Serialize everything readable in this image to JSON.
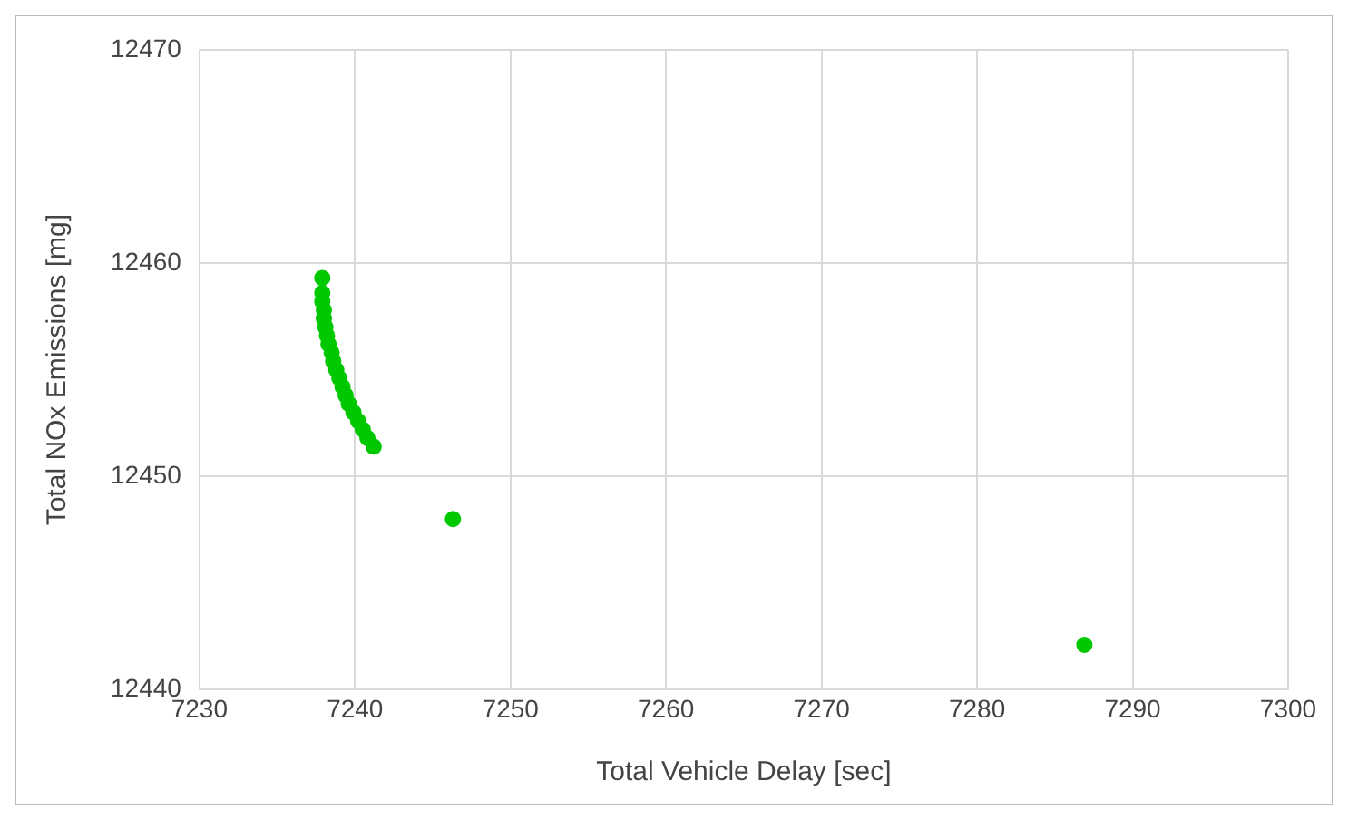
{
  "chart_data": {
    "type": "scatter",
    "xlabel": "Total Vehicle Delay [sec]",
    "ylabel": "Total NOx Emissions [mg]",
    "x": [
      7237.9,
      7237.9,
      7237.9,
      7238.0,
      7238.0,
      7238.1,
      7238.2,
      7238.3,
      7238.5,
      7238.6,
      7238.8,
      7239.0,
      7239.2,
      7239.4,
      7239.6,
      7239.9,
      7240.2,
      7240.5,
      7240.8,
      7241.2,
      7246.3,
      7286.9
    ],
    "series": [
      {
        "color": "#00c800",
        "values": [
          12459.3,
          12458.6,
          12458.2,
          12457.8,
          12457.4,
          12457.0,
          12456.6,
          12456.2,
          12455.8,
          12455.4,
          12455.0,
          12454.6,
          12454.2,
          12453.8,
          12453.4,
          12453.0,
          12452.6,
          12452.2,
          12451.8,
          12451.4,
          12448.0,
          12442.1
        ]
      }
    ],
    "xlim": [
      7230,
      7300
    ],
    "xticks": [
      7230,
      7240,
      7250,
      7260,
      7270,
      7280,
      7290,
      7300
    ],
    "ylim": [
      12440,
      12470
    ],
    "yticks": [
      12440,
      12450,
      12460,
      12470
    ],
    "grid": true,
    "marker": "circle",
    "legend": false
  }
}
